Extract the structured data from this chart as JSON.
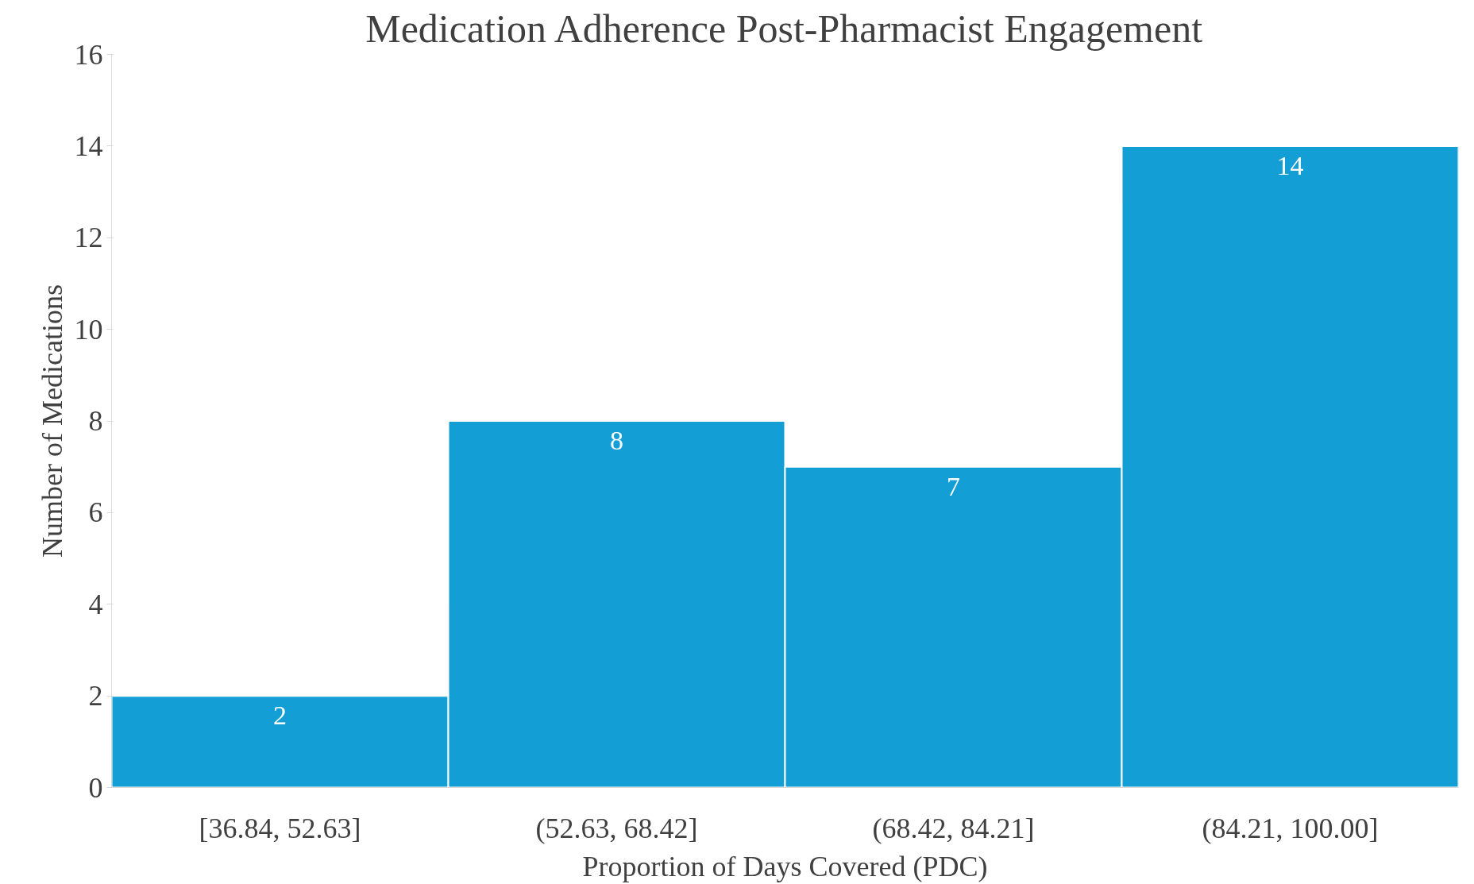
{
  "chart_data": {
    "type": "bar",
    "title": "Medication Adherence Post-Pharmacist Engagement",
    "xlabel": "Proportion of Days Covered (PDC)",
    "ylabel": "Number of Medications",
    "categories": [
      "[36.84, 52.63]",
      "(52.63, 68.42]",
      "(68.42, 84.21]",
      "(84.21, 100.00]"
    ],
    "values": [
      2,
      8,
      7,
      14
    ],
    "color": "#139ed6",
    "ylim": [
      0,
      16
    ],
    "yticks": [
      0,
      2,
      4,
      6,
      8,
      10,
      12,
      14,
      16
    ],
    "grid": false,
    "data_labels": true
  }
}
